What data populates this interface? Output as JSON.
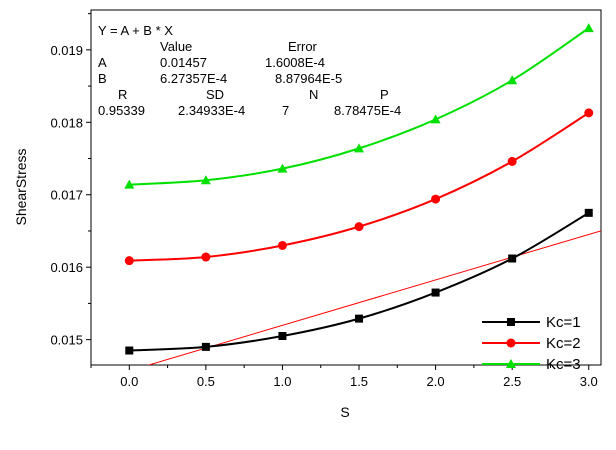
{
  "chart_data": {
    "type": "line",
    "xlabel": "S",
    "ylabel": "ShearStress",
    "xlim": [
      -0.25,
      3.08
    ],
    "ylim": [
      0.01465,
      0.01955
    ],
    "xticks": [
      0.0,
      0.5,
      1.0,
      1.5,
      2.0,
      2.5,
      3.0
    ],
    "xtick_labels": [
      "0.0",
      "0.5",
      "1.0",
      "1.5",
      "2.0",
      "2.5",
      "3.0"
    ],
    "yticks": [
      0.015,
      0.016,
      0.017,
      0.018,
      0.019
    ],
    "ytick_labels": [
      "0.015",
      "0.016",
      "0.017",
      "0.018",
      "0.019"
    ],
    "grid": false,
    "legend_position": "bottom-right",
    "series": [
      {
        "name": "Kc=1",
        "color": "#000000",
        "marker": "square",
        "x": [
          0,
          0.5,
          1.0,
          1.5,
          2.0,
          2.5,
          3.0
        ],
        "y": [
          0.01485,
          0.0149,
          0.01505,
          0.01529,
          0.01565,
          0.01612,
          0.01675
        ]
      },
      {
        "name": "Kc=2",
        "color": "#ff0000",
        "marker": "circle",
        "x": [
          0,
          0.5,
          1.0,
          1.5,
          2.0,
          2.5,
          3.0
        ],
        "y": [
          0.01609,
          0.01614,
          0.0163,
          0.01656,
          0.01694,
          0.01746,
          0.01813
        ]
      },
      {
        "name": "Kc=3",
        "color": "#00e000",
        "marker": "triangle",
        "x": [
          0,
          0.5,
          1.0,
          1.5,
          2.0,
          2.5,
          3.0
        ],
        "y": [
          0.01714,
          0.0172,
          0.01736,
          0.01764,
          0.01804,
          0.01858,
          0.0193
        ]
      }
    ],
    "fit_line": {
      "color": "#ff0000",
      "intercept": 0.01457,
      "slope": 0.000627357
    },
    "annotation": {
      "equation": "Y = A + B * X",
      "col_value": "Value",
      "col_error": "Error",
      "rows": [
        {
          "param": "A",
          "value": "0.01457",
          "error": "1.6008E-4"
        },
        {
          "param": "B",
          "value": "6.27357E-4",
          "error": "8.87964E-5"
        }
      ],
      "stats_headers": [
        "R",
        "SD",
        "N",
        "P"
      ],
      "stats_values": [
        "0.95339",
        "2.34933E-4",
        "7",
        "8.78475E-4"
      ]
    }
  }
}
